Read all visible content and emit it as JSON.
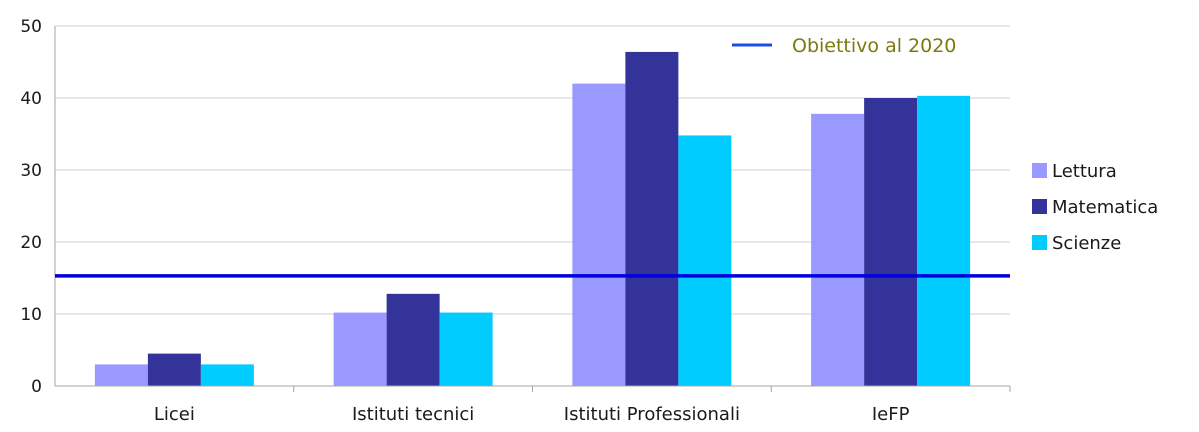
{
  "chart_data": {
    "type": "bar",
    "categories": [
      "Licei",
      "Istituti tecnici",
      "Istituti Professionali",
      "IeFP"
    ],
    "series": [
      {
        "name": "Lettura",
        "values": [
          3.0,
          10.2,
          42.0,
          37.8
        ],
        "color": "#9999ff"
      },
      {
        "name": "Matematica",
        "values": [
          4.5,
          12.8,
          46.4,
          40.0
        ],
        "color": "#333399"
      },
      {
        "name": "Scienze",
        "values": [
          3.0,
          10.2,
          34.8,
          40.3
        ],
        "color": "#00ccff"
      }
    ],
    "ylim": [
      0,
      50
    ],
    "yticks": [
      0,
      10,
      20,
      30,
      40,
      50
    ],
    "grid": true,
    "legend": "right",
    "target_line": {
      "label": "Obiettivo al 2020",
      "value": 15.3,
      "color": "#0000dd",
      "label_color": "#7a7a10"
    }
  }
}
